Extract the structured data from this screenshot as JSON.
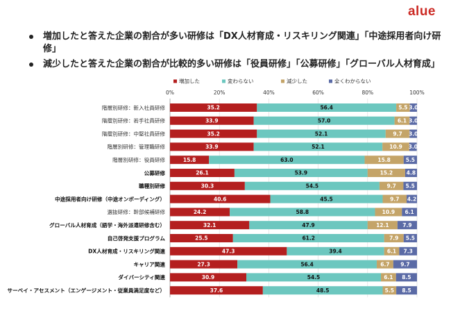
{
  "header": {
    "logo": "alue"
  },
  "bullets": [
    "増加したと答えた企業の割合が多い研修は「DX人材育成・リスキリング関連」「中途採用者向け研修」",
    "減少したと答えた企業の割合が比較的多い研修は「役員研修」「公募研修」「グローバル人材育成」"
  ],
  "colors": {
    "increase": "#b41f1f",
    "same": "#6cc7bf",
    "decrease": "#c4a468",
    "unknown": "#5b6ba6"
  },
  "chart_data": {
    "type": "bar",
    "orientation": "horizontal",
    "stacked": "percent",
    "xlim": [
      0,
      100
    ],
    "ticks": [
      "0%",
      "20%",
      "40%",
      "60%",
      "80%",
      "100%"
    ],
    "legend": [
      "増加した",
      "変わらない",
      "減少した",
      "全くわからない"
    ],
    "legend_position": "top",
    "categories": [
      "階層別研修：新入社員研修",
      "階層別研修：若手社員研修",
      "階層別研修：中堅社員研修",
      "階層別研修：管理職研修",
      "階層別研修：役員研修",
      "公募研修",
      "職種別研修",
      "中途採用者向け研修（中途オンボーディング）",
      "選抜研修：幹部候補研修",
      "グローバル人材育成（語学・海外派遣研修含む）",
      "自己啓発支援プログラム",
      "DX人材育成・リスキリング関連",
      "キャリア関連",
      "ダイバーシティ関連",
      "サーベイ・アセスメント（エンゲージメント・従業員満足度など）"
    ],
    "bold_categories": [
      5,
      6,
      7,
      9,
      10,
      11,
      12,
      13,
      14
    ],
    "series": [
      {
        "name": "増加した",
        "values": [
          35.2,
          33.9,
          35.2,
          33.9,
          15.8,
          26.1,
          30.3,
          40.6,
          24.2,
          32.1,
          25.5,
          47.3,
          27.3,
          30.9,
          37.6
        ]
      },
      {
        "name": "変わらない",
        "values": [
          56.4,
          57.0,
          52.1,
          52.1,
          63.0,
          53.9,
          54.5,
          45.5,
          58.8,
          47.9,
          61.2,
          39.4,
          56.4,
          54.5,
          48.5
        ]
      },
      {
        "name": "減少した",
        "values": [
          5.5,
          6.1,
          9.7,
          10.9,
          15.8,
          15.2,
          9.7,
          9.7,
          10.9,
          12.1,
          7.9,
          6.1,
          6.7,
          6.1,
          5.5
        ]
      },
      {
        "name": "全くわからない",
        "values": [
          3.0,
          3.0,
          3.0,
          3.0,
          5.5,
          4.8,
          5.5,
          4.2,
          6.1,
          7.9,
          5.5,
          7.3,
          9.7,
          8.5,
          8.5
        ]
      }
    ]
  }
}
